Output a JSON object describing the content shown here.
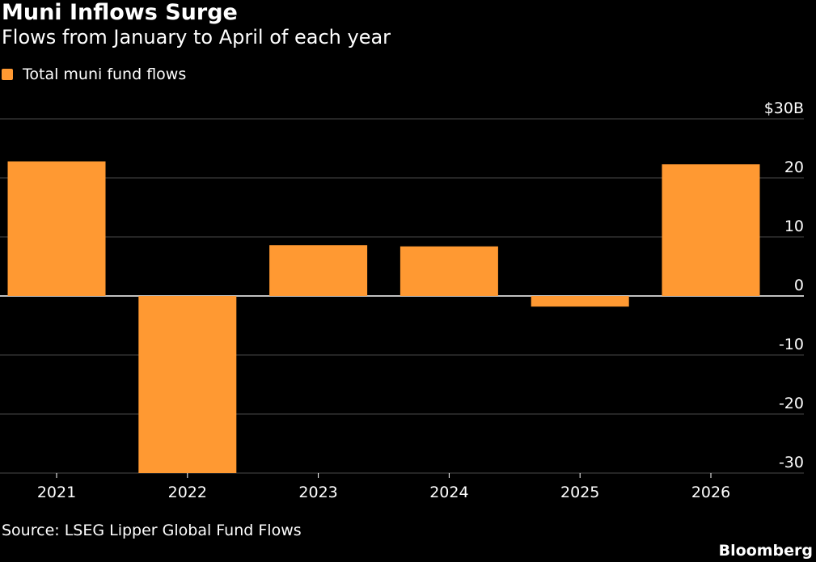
{
  "header": {
    "title": "Muni Inflows Surge",
    "subtitle": "Flows from January to April of each year"
  },
  "legend": {
    "label": "Total muni fund flows"
  },
  "footer": {
    "source": "Source: LSEG Lipper Global Fund Flows",
    "brand": "Bloomberg"
  },
  "colors": {
    "bar": "#FF9932",
    "background": "#000000",
    "grid": "#4a4a4a",
    "zero_line": "#ffffff"
  },
  "chart_data": {
    "type": "bar",
    "title": "Muni Inflows Surge",
    "subtitle": "Flows from January to April of each year",
    "categories": [
      "2021",
      "2022",
      "2023",
      "2024",
      "2025",
      "2026"
    ],
    "series": [
      {
        "name": "Total muni fund flows",
        "values": [
          22.8,
          -30,
          8.6,
          8.4,
          -1.8,
          22.3
        ]
      }
    ],
    "unit": "$B",
    "ylim": [
      -30,
      30
    ],
    "yticks": [
      30,
      20,
      10,
      0,
      -10,
      -20,
      -30
    ],
    "ytick_labels": [
      "$30B",
      "20",
      "10",
      "0",
      "-10",
      "-20",
      "-30"
    ],
    "grid": true,
    "yaxis_position": "right",
    "legend_position": "top-left"
  }
}
